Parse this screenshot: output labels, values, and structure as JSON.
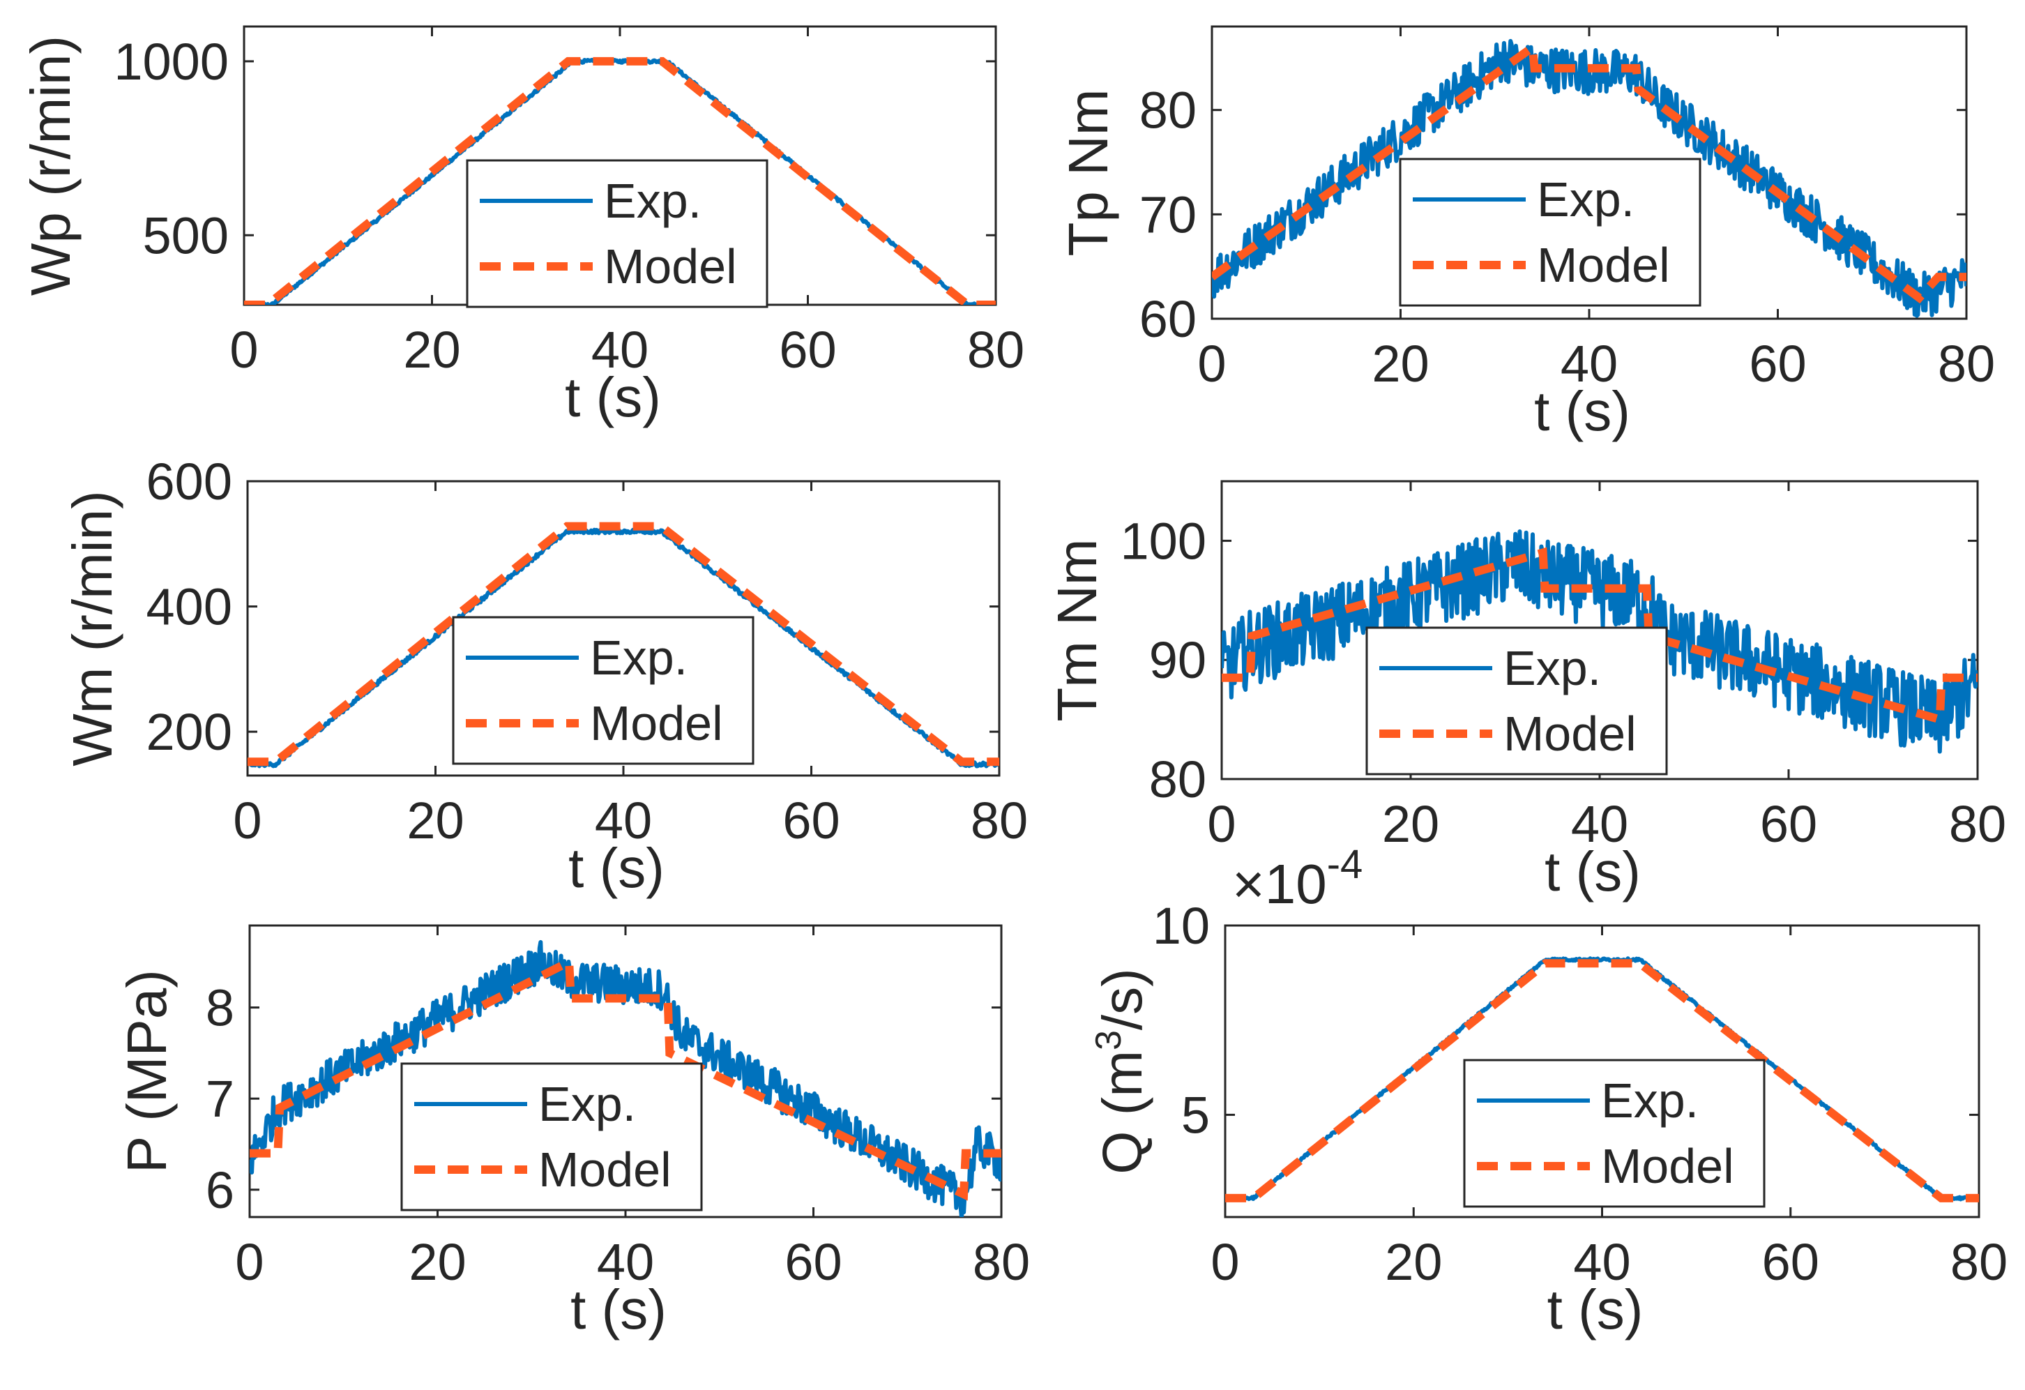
{
  "chart_data": [
    {
      "id": "wp",
      "type": "line",
      "ylabel": "Wp (r/min)",
      "xlabel": "t (s)",
      "xlim": [
        0,
        80
      ],
      "ylim": [
        300,
        1100
      ],
      "xticks": [
        "0",
        "20",
        "40",
        "60",
        "80"
      ],
      "yticks": [
        {
          "v": 500,
          "label": "500"
        },
        {
          "v": 1000,
          "label": "1000"
        }
      ],
      "exponent": null,
      "noise": 4,
      "legend": {
        "position": "center",
        "exp_label": "Exp.",
        "model_label": "Model"
      },
      "series": [
        {
          "name": "Exp.",
          "base": [
            [
              0,
              300
            ],
            [
              3,
              300
            ],
            [
              35,
              1000
            ],
            [
              45,
              1000
            ],
            [
              77,
              300
            ],
            [
              80,
              300
            ]
          ]
        },
        {
          "name": "Model",
          "points": [
            [
              0,
              300
            ],
            [
              2.5,
              300
            ],
            [
              34.5,
              1000
            ],
            [
              44.5,
              1000
            ],
            [
              77,
              300
            ],
            [
              80,
              300
            ]
          ]
        }
      ]
    },
    {
      "id": "tp",
      "type": "line",
      "ylabel": "Tp Nm",
      "xlabel": "t (s)",
      "xlim": [
        0,
        80
      ],
      "ylim": [
        60,
        88
      ],
      "xticks": [
        "0",
        "20",
        "40",
        "60",
        "80"
      ],
      "yticks": [
        {
          "v": 60,
          "label": "60"
        },
        {
          "v": 70,
          "label": "70"
        },
        {
          "v": 80,
          "label": "80"
        }
      ],
      "exponent": null,
      "noise": 2.2,
      "legend": {
        "position": "bottom-center",
        "exp_label": "Exp.",
        "model_label": "Model"
      },
      "series": [
        {
          "name": "Exp.",
          "base": [
            [
              0,
              64
            ],
            [
              3,
              66
            ],
            [
              31,
              85
            ],
            [
              34,
              84
            ],
            [
              45,
              83.5
            ],
            [
              47,
              81
            ],
            [
              75,
              62
            ],
            [
              80,
              64
            ]
          ]
        },
        {
          "name": "Model",
          "points": [
            [
              0,
              64
            ],
            [
              3,
              66
            ],
            [
              34,
              86
            ],
            [
              34.2,
              84
            ],
            [
              45,
              84
            ],
            [
              45.2,
              82
            ],
            [
              75,
              62
            ],
            [
              77,
              64
            ],
            [
              80,
              64
            ]
          ]
        }
      ]
    },
    {
      "id": "wm",
      "type": "line",
      "ylabel": "Wm (r/min)",
      "xlabel": "t (s)",
      "xlim": [
        0,
        80
      ],
      "ylim": [
        130,
        600
      ],
      "xticks": [
        "0",
        "20",
        "40",
        "60",
        "80"
      ],
      "yticks": [
        {
          "v": 200,
          "label": "200"
        },
        {
          "v": 400,
          "label": "400"
        },
        {
          "v": 600,
          "label": "600"
        }
      ],
      "exponent": null,
      "noise": 3,
      "legend": {
        "position": "center",
        "exp_label": "Exp.",
        "model_label": "Model"
      },
      "series": [
        {
          "name": "Exp.",
          "base": [
            [
              0,
              148
            ],
            [
              3,
              148
            ],
            [
              34,
              520
            ],
            [
              44,
              520
            ],
            [
              76,
              148
            ],
            [
              80,
              148
            ]
          ]
        },
        {
          "name": "Model",
          "points": [
            [
              0,
              152
            ],
            [
              3,
              152
            ],
            [
              34,
              528
            ],
            [
              44,
              528
            ],
            [
              76,
              152
            ],
            [
              80,
              152
            ]
          ]
        }
      ]
    },
    {
      "id": "tm",
      "type": "line",
      "ylabel": "Tm Nm",
      "xlabel": "t (s)",
      "xlim": [
        0,
        80
      ],
      "ylim": [
        80,
        105
      ],
      "xticks": [
        "0",
        "20",
        "40",
        "60",
        "80"
      ],
      "yticks": [
        {
          "v": 80,
          "label": "80"
        },
        {
          "v": 90,
          "label": "90"
        },
        {
          "v": 100,
          "label": "100"
        }
      ],
      "exponent": null,
      "noise": 3.2,
      "legend": {
        "position": "bottom-center",
        "exp_label": "Exp.",
        "model_label": "Model"
      },
      "series": [
        {
          "name": "Exp.",
          "base": [
            [
              0,
              89
            ],
            [
              3,
              91
            ],
            [
              31,
              98
            ],
            [
              34,
              97
            ],
            [
              45,
              95
            ],
            [
              47,
              92
            ],
            [
              76,
              85
            ],
            [
              80,
              88
            ]
          ]
        },
        {
          "name": "Model",
          "points": [
            [
              0,
              88.5
            ],
            [
              3,
              88.5
            ],
            [
              3.2,
              92
            ],
            [
              34,
              99
            ],
            [
              34.2,
              96
            ],
            [
              45,
              96
            ],
            [
              45.2,
              92
            ],
            [
              76,
              85
            ],
            [
              76.2,
              88.5
            ],
            [
              80,
              88.5
            ]
          ]
        }
      ]
    },
    {
      "id": "p",
      "type": "line",
      "ylabel": "P (MPa)",
      "xlabel": "t (s)",
      "xlim": [
        0,
        80
      ],
      "ylim": [
        5.7,
        8.9
      ],
      "xticks": [
        "0",
        "20",
        "40",
        "60",
        "80"
      ],
      "yticks": [
        {
          "v": 6,
          "label": "6"
        },
        {
          "v": 7,
          "label": "7"
        },
        {
          "v": 8,
          "label": "8"
        }
      ],
      "exponent": null,
      "noise": 0.22,
      "legend": {
        "position": "bottom-center",
        "exp_label": "Exp.",
        "model_label": "Model"
      },
      "series": [
        {
          "name": "Exp.",
          "base": [
            [
              0,
              6.3
            ],
            [
              3,
              6.9
            ],
            [
              31,
              8.5
            ],
            [
              34,
              8.3
            ],
            [
              44,
              8.2
            ],
            [
              46,
              7.7
            ],
            [
              76,
              5.9
            ],
            [
              77.5,
              6.5
            ],
            [
              80,
              6.3
            ]
          ]
        },
        {
          "name": "Model",
          "points": [
            [
              0,
              6.4
            ],
            [
              3,
              6.4
            ],
            [
              3.2,
              6.9
            ],
            [
              34,
              8.5
            ],
            [
              34.2,
              8.1
            ],
            [
              44.5,
              8.1
            ],
            [
              44.7,
              7.5
            ],
            [
              76,
              5.95
            ],
            [
              76.2,
              6.4
            ],
            [
              80,
              6.4
            ]
          ]
        }
      ]
    },
    {
      "id": "q",
      "type": "line",
      "ylabel": "Q (m3/s)",
      "xlabel": "t (s)",
      "xlim": [
        0,
        80
      ],
      "ylim": [
        2.3,
        10
      ],
      "xticks": [
        "0",
        "20",
        "40",
        "60",
        "80"
      ],
      "yticks": [
        {
          "v": 5,
          "label": "5"
        },
        {
          "v": 10,
          "label": "10"
        }
      ],
      "exponent": "×10-4",
      "noise": 0.03,
      "legend": {
        "position": "bottom-center",
        "exp_label": "Exp.",
        "model_label": "Model"
      },
      "series": [
        {
          "name": "Exp.",
          "base": [
            [
              0,
              2.8
            ],
            [
              3,
              2.8
            ],
            [
              34,
              9.1
            ],
            [
              44,
              9.1
            ],
            [
              76,
              2.8
            ],
            [
              80,
              2.8
            ]
          ]
        },
        {
          "name": "Model",
          "points": [
            [
              0,
              2.8
            ],
            [
              3,
              2.8
            ],
            [
              34,
              9.0
            ],
            [
              44,
              9.0
            ],
            [
              76,
              2.8
            ],
            [
              80,
              2.8
            ]
          ]
        }
      ]
    }
  ],
  "colors": {
    "exp": "#0072BD",
    "model": "#FF5A1F",
    "axis": "#262626"
  }
}
